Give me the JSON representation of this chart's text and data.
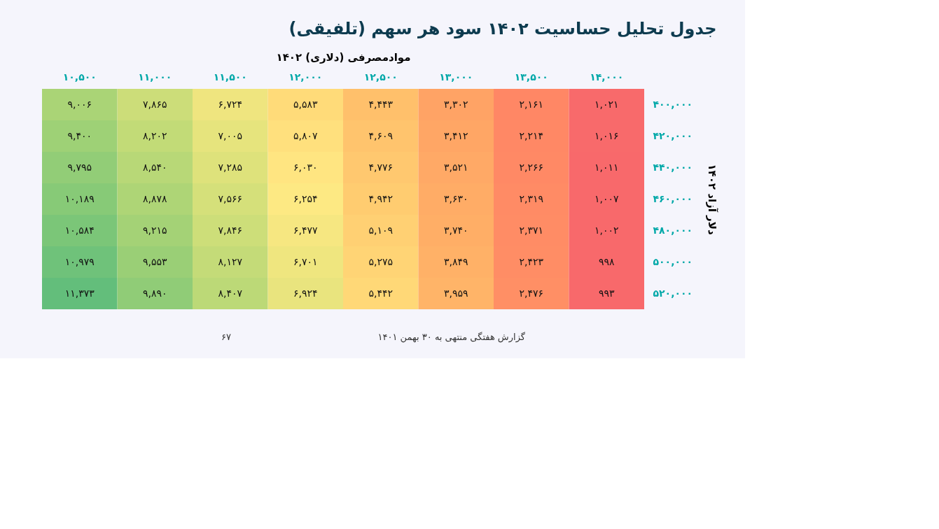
{
  "chart_data": {
    "type": "heatmap",
    "title": "جدول تحلیل حساسیت ۱۴۰۲ سود هر سهم (تلفیقی)",
    "xlabel": "موادمصرفی (دلاری) ۱۴۰۲",
    "ylabel": "دلار آزاد ۱۴۰۲",
    "categories": [
      "۱۰,۵۰۰",
      "۱۱,۰۰۰",
      "۱۱,۵۰۰",
      "۱۲,۰۰۰",
      "۱۲,۵۰۰",
      "۱۳,۰۰۰",
      "۱۳,۵۰۰",
      "۱۴,۰۰۰"
    ],
    "y_categories": [
      "۴۰۰,۰۰۰",
      "۴۲۰,۰۰۰",
      "۴۴۰,۰۰۰",
      "۴۶۰,۰۰۰",
      "۴۸۰,۰۰۰",
      "۵۰۰,۰۰۰",
      "۵۲۰,۰۰۰"
    ],
    "cells": [
      [
        9006,
        7865,
        6724,
        5583,
        4443,
        3302,
        2161,
        1021
      ],
      [
        9400,
        8202,
        7005,
        5807,
        4609,
        3412,
        2214,
        1016
      ],
      [
        9795,
        8540,
        7285,
        6030,
        4776,
        3521,
        2266,
        1011
      ],
      [
        10189,
        8878,
        7566,
        6254,
        4942,
        3630,
        2319,
        1007
      ],
      [
        10584,
        9215,
        7846,
        6477,
        5109,
        3740,
        2371,
        1002
      ],
      [
        10979,
        9553,
        8127,
        6701,
        5275,
        3849,
        2423,
        998
      ],
      [
        11373,
        9890,
        8407,
        6924,
        5442,
        3959,
        2476,
        993
      ]
    ],
    "cell_labels": [
      [
        "۹,۰۰۶",
        "۷,۸۶۵",
        "۶,۷۲۴",
        "۵,۵۸۳",
        "۴,۴۴۳",
        "۳,۳۰۲",
        "۲,۱۶۱",
        "۱,۰۲۱"
      ],
      [
        "۹,۴۰۰",
        "۸,۲۰۲",
        "۷,۰۰۵",
        "۵,۸۰۷",
        "۴,۶۰۹",
        "۳,۴۱۲",
        "۲,۲۱۴",
        "۱,۰۱۶"
      ],
      [
        "۹,۷۹۵",
        "۸,۵۴۰",
        "۷,۲۸۵",
        "۶,۰۳۰",
        "۴,۷۷۶",
        "۳,۵۲۱",
        "۲,۲۶۶",
        "۱,۰۱۱"
      ],
      [
        "۱۰,۱۸۹",
        "۸,۸۷۸",
        "۷,۵۶۶",
        "۶,۲۵۴",
        "۴,۹۴۲",
        "۳,۶۳۰",
        "۲,۳۱۹",
        "۱,۰۰۷"
      ],
      [
        "۱۰,۵۸۴",
        "۹,۲۱۵",
        "۷,۸۴۶",
        "۶,۴۷۷",
        "۵,۱۰۹",
        "۳,۷۴۰",
        "۲,۳۷۱",
        "۱,۰۰۲"
      ],
      [
        "۱۰,۹۷۹",
        "۹,۵۵۳",
        "۸,۱۲۷",
        "۶,۷۰۱",
        "۵,۲۷۵",
        "۳,۸۴۹",
        "۲,۴۲۳",
        "۹۹۸"
      ],
      [
        "۱۱,۳۷۳",
        "۹,۸۹۰",
        "۸,۴۰۷",
        "۶,۹۲۴",
        "۵,۴۴۲",
        "۳,۹۵۹",
        "۲,۴۷۶",
        "۹۹۳"
      ]
    ],
    "annotations": [
      "گزارش هفتگی منتهی به ۳۰ بهمن ۱۴۰۱",
      "۶۷"
    ]
  }
}
